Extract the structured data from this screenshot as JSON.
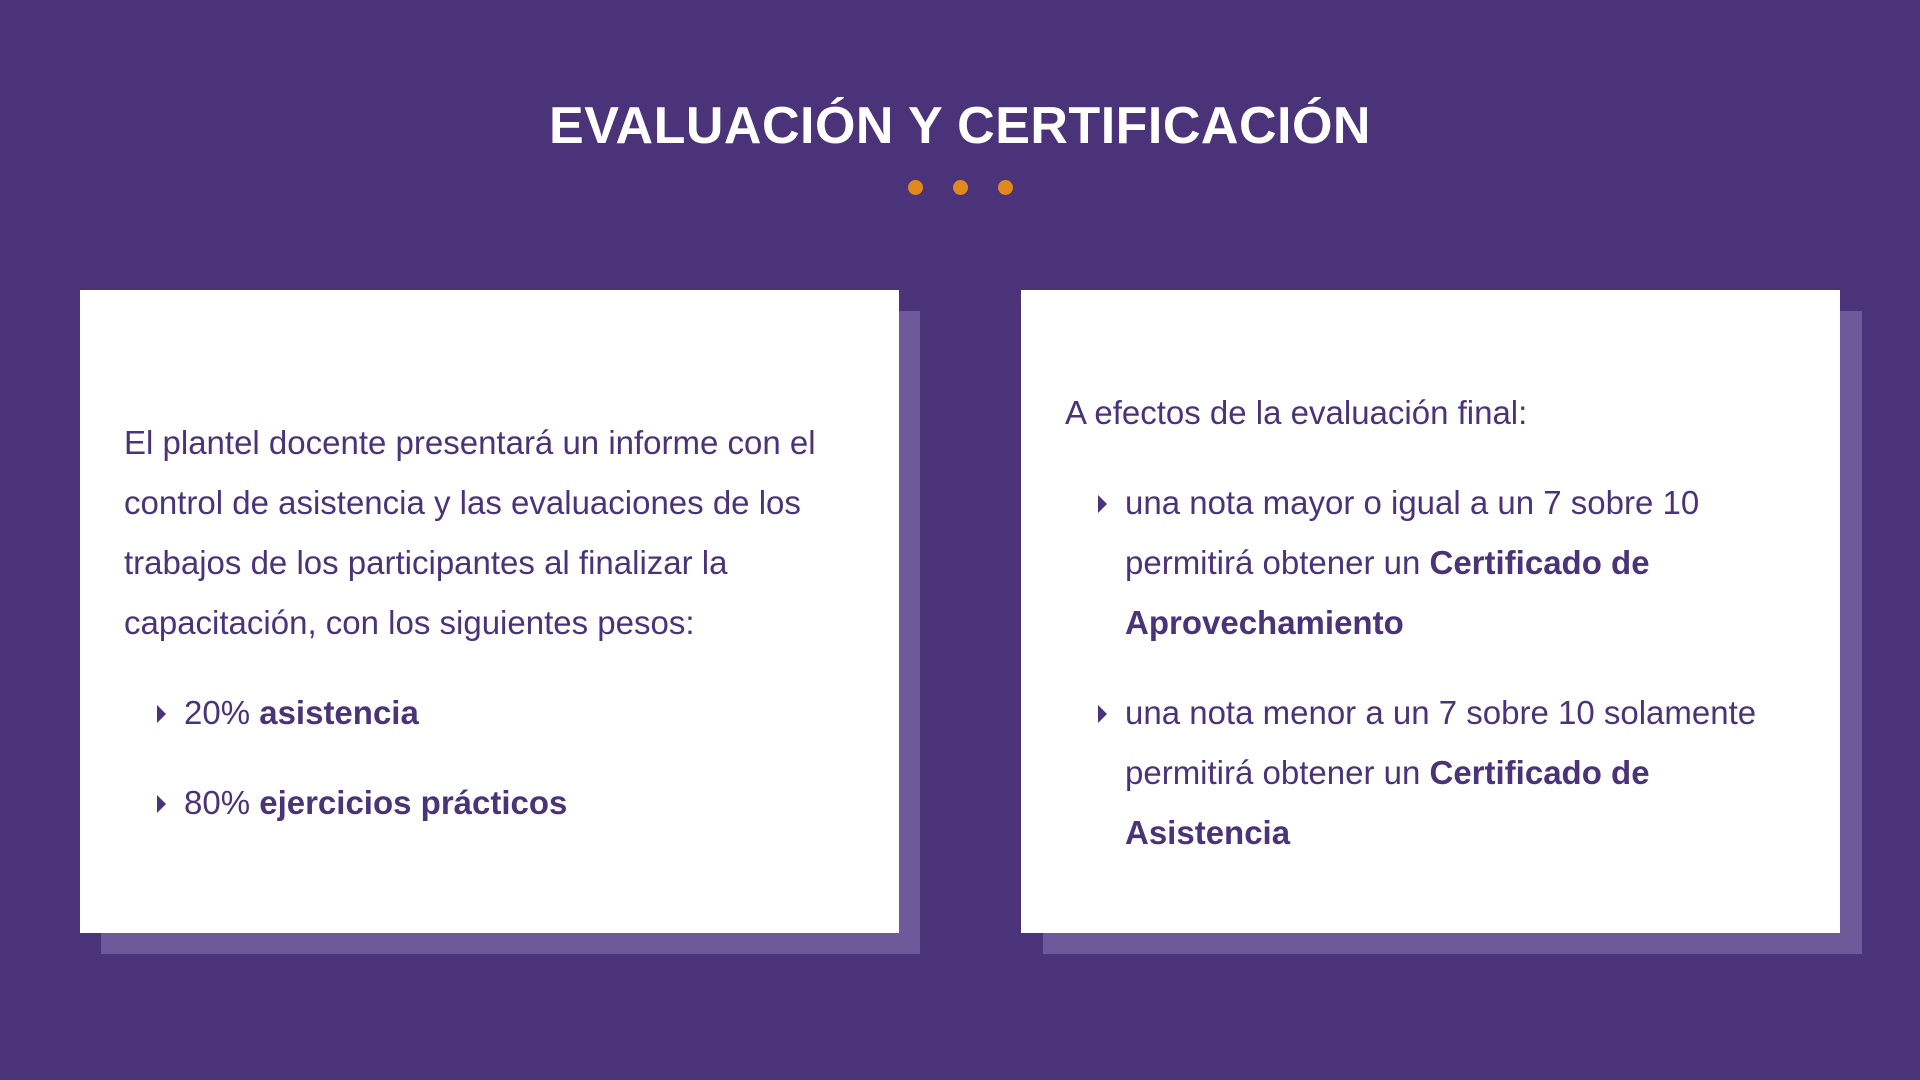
{
  "title": "EVALUACIÓN Y CERTIFICACIÓN",
  "colors": {
    "background": "#4b3379",
    "accent": "#e08a1e",
    "card": "#ffffff",
    "shadow": "#6e5a9b"
  },
  "left_card": {
    "intro": "El plantel docente presentará un informe con el control de asistencia y las evaluaciones de los trabajos de los participantes al finalizar la capacitación, con los siguientes pesos:",
    "items": [
      {
        "prefix": "20% ",
        "bold": "asistencia"
      },
      {
        "prefix": "80% ",
        "bold": "ejercicios prácticos"
      }
    ]
  },
  "right_card": {
    "intro": "A efectos de la evaluación final:",
    "items": [
      {
        "text": "una nota mayor o igual a un 7 sobre 10 permitirá obtener un ",
        "bold": "Certificado de Aprovechamiento"
      },
      {
        "text": "una nota menor a un 7 sobre 10 solamente permitirá obtener un ",
        "bold": "Certificado de Asistencia"
      }
    ]
  }
}
